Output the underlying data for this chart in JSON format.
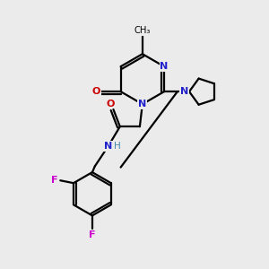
{
  "background_color": "#ebebeb",
  "atom_colors": {
    "C": "#000000",
    "N_blue": "#2222cc",
    "N_teal": "#336699",
    "O": "#cc0000",
    "F": "#cc00cc",
    "H": "#4488aa"
  },
  "line_color": "#000000",
  "line_width": 1.6,
  "figsize": [
    3.0,
    3.0
  ],
  "dpi": 100,
  "xlim": [
    0,
    10
  ],
  "ylim": [
    0,
    10
  ]
}
